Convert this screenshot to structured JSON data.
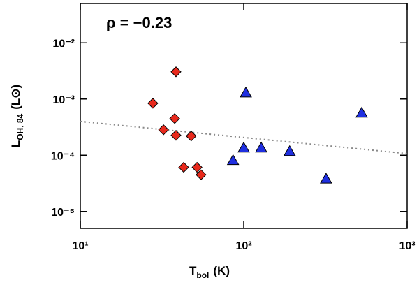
{
  "chart_data": {
    "type": "scatter",
    "annotation": "ρ = −0.23",
    "x_label": "T",
    "x_label_sub": "bol",
    "x_label_unit": "(K)",
    "y_label": "L",
    "y_label_sub": "OH, 84",
    "y_label_unit": "(L⊙)",
    "log_x": true,
    "log_y": true,
    "xlim": [
      10,
      1000
    ],
    "ylim": [
      5e-06,
      0.05
    ],
    "xticks": [
      {
        "value": 10,
        "label": "10¹"
      },
      {
        "value": 100,
        "label": "10²"
      },
      {
        "value": 1000,
        "label": "10³"
      }
    ],
    "yticks": [
      {
        "value": 1e-05,
        "label": "10⁻⁵"
      },
      {
        "value": 0.0001,
        "label": "10⁻⁴"
      },
      {
        "value": 0.001,
        "label": "10⁻³"
      },
      {
        "value": 0.01,
        "label": "10⁻²"
      }
    ],
    "series": [
      {
        "marker": "diamond",
        "color": "#e8291c",
        "x": [
          27.8,
          38.5,
          32.3,
          37.8,
          38.5,
          47.7,
          42.9,
          51.8,
          54.8
        ],
        "values": [
          0.00084,
          0.00305,
          0.000284,
          0.00045,
          0.000226,
          0.00022,
          6.1e-05,
          6.1e-05,
          4.5e-05
        ]
      },
      {
        "marker": "triangle",
        "color": "#1f2fe0",
        "x": [
          103,
          100,
          86,
          128,
          191,
          319,
          527
        ],
        "values": [
          0.00129,
          0.000135,
          8.1e-05,
          0.000135,
          0.000117,
          3.8e-05,
          0.000565
        ]
      }
    ],
    "fit_line": {
      "color": "#888888",
      "x": [
        10,
        1000
      ],
      "y": [
        0.0004,
        0.000107
      ]
    }
  }
}
